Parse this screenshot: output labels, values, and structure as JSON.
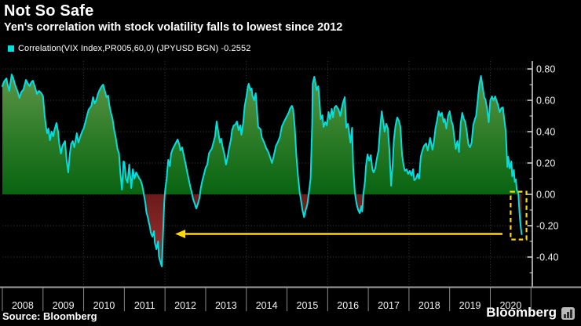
{
  "header": {
    "title": "Not So Safe",
    "subtitle": "Yen's correlation with stock volatility falls to lowest since 2012"
  },
  "legend": {
    "label": "Correlation(VIX Index,PR005,60,0) (JPYUSD BGN) -0.2552"
  },
  "footer": {
    "source": "Source: Bloomberg",
    "brand": "Bloomberg",
    "brand_icon": "bar-chart-icon"
  },
  "chart_data": {
    "type": "area",
    "title": "Not So Safe",
    "subtitle": "Yen's correlation with stock volatility falls to lowest since 2012",
    "series_name": "Correlation(VIX Index,PR005,60,0) (JPYUSD BGN)",
    "last_value": -0.2552,
    "x_axis": {
      "tick_labels": [
        "2008",
        "2009",
        "2010",
        "2011",
        "2012",
        "2013",
        "2014",
        "2015",
        "2016",
        "2017",
        "2018",
        "2019",
        "2020"
      ],
      "range": [
        2008,
        2021
      ]
    },
    "y_axis": {
      "major_ticks": [
        0.8,
        0.6,
        0.4,
        0.2,
        0.0,
        -0.2,
        -0.4
      ],
      "tick_labels": [
        "0.80",
        "0.60",
        "0.40",
        "0.20",
        "0.00",
        "-0.20",
        "-0.40"
      ],
      "minor_ticks": [
        0.7,
        0.5,
        0.3,
        0.1,
        -0.1,
        -0.3,
        -0.5
      ],
      "range": [
        -0.59,
        0.85
      ],
      "grid": "dotted"
    },
    "grid_v_years": [
      2010,
      2012,
      2014,
      2016,
      2018,
      2020
    ],
    "annotations": {
      "arrow": {
        "y_value": -0.2525,
        "from_year": 2020.3,
        "to_year": 2012.25,
        "color": "#ffd900",
        "meaning": "points from 2020 low back to 2012 level"
      },
      "highlight_box": {
        "from_year": 2020.5,
        "to_year": 2020.89,
        "value_top": 0.017,
        "value_bottom": -0.288,
        "color": "#ffd900",
        "style": "dashed"
      }
    },
    "colors": {
      "background": "#000000",
      "line": "#00dfe0",
      "area_positive_top": "#68994f",
      "area_positive_mid": "#2f7d28",
      "area_positive_bottom": "#086311",
      "area_negative_top": "#6b1a1a",
      "area_negative_bottom": "#a23434",
      "grid": "#454545",
      "axis": "#d9d9d9",
      "bottom_axis": "#9e9e9e",
      "tick_label": "#f2f2f2",
      "annotation": "#ffd900"
    },
    "points": [
      [
        2008.0,
        0.69
      ],
      [
        2008.04,
        0.72
      ],
      [
        2008.1,
        0.74
      ],
      [
        2008.13,
        0.7
      ],
      [
        2008.17,
        0.66
      ],
      [
        2008.23,
        0.765
      ],
      [
        2008.27,
        0.74
      ],
      [
        2008.31,
        0.7
      ],
      [
        2008.37,
        0.66
      ],
      [
        2008.42,
        0.615
      ],
      [
        2008.46,
        0.65
      ],
      [
        2008.52,
        0.67
      ],
      [
        2008.58,
        0.73
      ],
      [
        2008.62,
        0.71
      ],
      [
        2008.67,
        0.69
      ],
      [
        2008.71,
        0.715
      ],
      [
        2008.75,
        0.725
      ],
      [
        2008.81,
        0.68
      ],
      [
        2008.85,
        0.64
      ],
      [
        2008.9,
        0.66
      ],
      [
        2008.96,
        0.645
      ],
      [
        2009.0,
        0.625
      ],
      [
        2009.04,
        0.5
      ],
      [
        2009.08,
        0.42
      ],
      [
        2009.1,
        0.39
      ],
      [
        2009.13,
        0.42
      ],
      [
        2009.17,
        0.345
      ],
      [
        2009.21,
        0.4
      ],
      [
        2009.25,
        0.37
      ],
      [
        2009.29,
        0.42
      ],
      [
        2009.33,
        0.455
      ],
      [
        2009.37,
        0.4
      ],
      [
        2009.4,
        0.32
      ],
      [
        2009.44,
        0.26
      ],
      [
        2009.48,
        0.31
      ],
      [
        2009.54,
        0.34
      ],
      [
        2009.58,
        0.22
      ],
      [
        2009.62,
        0.14
      ],
      [
        2009.65,
        0.24
      ],
      [
        2009.69,
        0.32
      ],
      [
        2009.73,
        0.34
      ],
      [
        2009.77,
        0.3
      ],
      [
        2009.83,
        0.39
      ],
      [
        2009.87,
        0.33
      ],
      [
        2009.92,
        0.37
      ],
      [
        2009.96,
        0.4
      ],
      [
        2010.0,
        0.42
      ],
      [
        2010.04,
        0.46
      ],
      [
        2010.08,
        0.5
      ],
      [
        2010.12,
        0.54
      ],
      [
        2010.15,
        0.55
      ],
      [
        2010.19,
        0.565
      ],
      [
        2010.23,
        0.62
      ],
      [
        2010.27,
        0.58
      ],
      [
        2010.31,
        0.6
      ],
      [
        2010.35,
        0.64
      ],
      [
        2010.38,
        0.66
      ],
      [
        2010.42,
        0.68
      ],
      [
        2010.46,
        0.695
      ],
      [
        2010.48,
        0.7
      ],
      [
        2010.52,
        0.66
      ],
      [
        2010.56,
        0.62
      ],
      [
        2010.6,
        0.63
      ],
      [
        2010.63,
        0.57
      ],
      [
        2010.67,
        0.52
      ],
      [
        2010.71,
        0.48
      ],
      [
        2010.75,
        0.41
      ],
      [
        2010.79,
        0.36
      ],
      [
        2010.83,
        0.29
      ],
      [
        2010.87,
        0.26
      ],
      [
        2010.9,
        0.14
      ],
      [
        2010.94,
        0.03
      ],
      [
        2010.98,
        0.21
      ],
      [
        2011.0,
        0.205
      ],
      [
        2011.04,
        0.1
      ],
      [
        2011.08,
        0.075
      ],
      [
        2011.12,
        0.19
      ],
      [
        2011.15,
        0.1
      ],
      [
        2011.17,
        0.04
      ],
      [
        2011.21,
        0.16
      ],
      [
        2011.25,
        0.1
      ],
      [
        2011.29,
        0.14
      ],
      [
        2011.33,
        0.12
      ],
      [
        2011.37,
        0.1
      ],
      [
        2011.4,
        0.09
      ],
      [
        2011.44,
        0.055
      ],
      [
        2011.48,
        0.0
      ],
      [
        2011.52,
        -0.06
      ],
      [
        2011.54,
        -0.11
      ],
      [
        2011.58,
        -0.15
      ],
      [
        2011.6,
        -0.175
      ],
      [
        2011.63,
        -0.21
      ],
      [
        2011.65,
        -0.245
      ],
      [
        2011.69,
        -0.27
      ],
      [
        2011.73,
        -0.235
      ],
      [
        2011.75,
        -0.31
      ],
      [
        2011.79,
        -0.35
      ],
      [
        2011.83,
        -0.3
      ],
      [
        2011.85,
        -0.395
      ],
      [
        2011.88,
        -0.425
      ],
      [
        2011.92,
        -0.46
      ],
      [
        2011.94,
        -0.325
      ],
      [
        2011.98,
        -0.06
      ],
      [
        2012.0,
        0.02
      ],
      [
        2012.04,
        0.1
      ],
      [
        2012.08,
        0.22
      ],
      [
        2012.12,
        0.18
      ],
      [
        2012.15,
        0.26
      ],
      [
        2012.19,
        0.29
      ],
      [
        2012.23,
        0.31
      ],
      [
        2012.27,
        0.33
      ],
      [
        2012.31,
        0.35
      ],
      [
        2012.35,
        0.32
      ],
      [
        2012.38,
        0.28
      ],
      [
        2012.42,
        0.3
      ],
      [
        2012.46,
        0.25
      ],
      [
        2012.5,
        0.2
      ],
      [
        2012.54,
        0.15
      ],
      [
        2012.58,
        0.1
      ],
      [
        2012.62,
        0.05
      ],
      [
        2012.65,
        0.02
      ],
      [
        2012.69,
        -0.03
      ],
      [
        2012.73,
        -0.06
      ],
      [
        2012.77,
        -0.09
      ],
      [
        2012.81,
        -0.06
      ],
      [
        2012.85,
        -0.02
      ],
      [
        2012.88,
        0.04
      ],
      [
        2012.92,
        0.09
      ],
      [
        2012.96,
        0.13
      ],
      [
        2013.0,
        0.17
      ],
      [
        2013.04,
        0.19
      ],
      [
        2013.08,
        0.26
      ],
      [
        2013.12,
        0.28
      ],
      [
        2013.15,
        0.29
      ],
      [
        2013.19,
        0.33
      ],
      [
        2013.23,
        0.37
      ],
      [
        2013.27,
        0.465
      ],
      [
        2013.31,
        0.4
      ],
      [
        2013.35,
        0.33
      ],
      [
        2013.38,
        0.355
      ],
      [
        2013.42,
        0.3
      ],
      [
        2013.46,
        0.255
      ],
      [
        2013.5,
        0.19
      ],
      [
        2013.54,
        0.24
      ],
      [
        2013.58,
        0.3
      ],
      [
        2013.62,
        0.35
      ],
      [
        2013.65,
        0.41
      ],
      [
        2013.69,
        0.44
      ],
      [
        2013.73,
        0.445
      ],
      [
        2013.77,
        0.465
      ],
      [
        2013.81,
        0.41
      ],
      [
        2013.85,
        0.44
      ],
      [
        2013.88,
        0.38
      ],
      [
        2013.92,
        0.45
      ],
      [
        2013.96,
        0.565
      ],
      [
        2014.0,
        0.62
      ],
      [
        2014.04,
        0.69
      ],
      [
        2014.06,
        0.705
      ],
      [
        2014.1,
        0.665
      ],
      [
        2014.13,
        0.675
      ],
      [
        2014.15,
        0.63
      ],
      [
        2014.19,
        0.6
      ],
      [
        2014.23,
        0.645
      ],
      [
        2014.29,
        0.43
      ],
      [
        2014.35,
        0.415
      ],
      [
        2014.38,
        0.365
      ],
      [
        2014.44,
        0.33
      ],
      [
        2014.48,
        0.3
      ],
      [
        2014.54,
        0.27
      ],
      [
        2014.58,
        0.24
      ],
      [
        2014.63,
        0.2
      ],
      [
        2014.67,
        0.24
      ],
      [
        2014.73,
        0.31
      ],
      [
        2014.77,
        0.33
      ],
      [
        2014.83,
        0.37
      ],
      [
        2014.87,
        0.43
      ],
      [
        2014.92,
        0.46
      ],
      [
        2014.96,
        0.48
      ],
      [
        2015.0,
        0.5
      ],
      [
        2015.04,
        0.52
      ],
      [
        2015.08,
        0.55
      ],
      [
        2015.12,
        0.565
      ],
      [
        2015.15,
        0.545
      ],
      [
        2015.19,
        0.43
      ],
      [
        2015.23,
        0.25
      ],
      [
        2015.27,
        0.12
      ],
      [
        2015.31,
        0.015
      ],
      [
        2015.35,
        -0.05
      ],
      [
        2015.38,
        -0.1
      ],
      [
        2015.42,
        -0.145
      ],
      [
        2015.46,
        -0.1
      ],
      [
        2015.5,
        -0.065
      ],
      [
        2015.54,
        0.015
      ],
      [
        2015.58,
        0.1
      ],
      [
        2015.62,
        0.45
      ],
      [
        2015.63,
        0.705
      ],
      [
        2015.67,
        0.75
      ],
      [
        2015.69,
        0.725
      ],
      [
        2015.73,
        0.665
      ],
      [
        2015.77,
        0.69
      ],
      [
        2015.79,
        0.63
      ],
      [
        2015.83,
        0.48
      ],
      [
        2015.87,
        0.505
      ],
      [
        2015.9,
        0.43
      ],
      [
        2015.94,
        0.46
      ],
      [
        2015.98,
        0.44
      ],
      [
        2016.02,
        0.525
      ],
      [
        2016.06,
        0.48
      ],
      [
        2016.1,
        0.545
      ],
      [
        2016.13,
        0.49
      ],
      [
        2016.17,
        0.555
      ],
      [
        2016.21,
        0.565
      ],
      [
        2016.27,
        0.54
      ],
      [
        2016.31,
        0.5
      ],
      [
        2016.37,
        0.58
      ],
      [
        2016.42,
        0.62
      ],
      [
        2016.46,
        0.425
      ],
      [
        2016.5,
        0.45
      ],
      [
        2016.56,
        0.33
      ],
      [
        2016.6,
        0.425
      ],
      [
        2016.63,
        0.17
      ],
      [
        2016.67,
        0.01
      ],
      [
        2016.71,
        -0.06
      ],
      [
        2016.75,
        -0.1
      ],
      [
        2016.79,
        -0.12
      ],
      [
        2016.83,
        -0.075
      ],
      [
        2016.85,
        -0.11
      ],
      [
        2016.88,
        0.005
      ],
      [
        2016.92,
        0.09
      ],
      [
        2016.94,
        0.175
      ],
      [
        2016.98,
        0.255
      ],
      [
        2017.02,
        0.215
      ],
      [
        2017.06,
        0.25
      ],
      [
        2017.1,
        0.16
      ],
      [
        2017.13,
        0.14
      ],
      [
        2017.17,
        0.165
      ],
      [
        2017.21,
        0.23
      ],
      [
        2017.25,
        0.28
      ],
      [
        2017.29,
        0.42
      ],
      [
        2017.33,
        0.53
      ],
      [
        2017.37,
        0.46
      ],
      [
        2017.4,
        0.4
      ],
      [
        2017.44,
        0.45
      ],
      [
        2017.48,
        0.42
      ],
      [
        2017.52,
        0.28
      ],
      [
        2017.56,
        0.055
      ],
      [
        2017.6,
        0.2
      ],
      [
        2017.63,
        0.35
      ],
      [
        2017.67,
        0.44
      ],
      [
        2017.71,
        0.49
      ],
      [
        2017.75,
        0.47
      ],
      [
        2017.79,
        0.43
      ],
      [
        2017.83,
        0.25
      ],
      [
        2017.87,
        0.18
      ],
      [
        2017.9,
        0.15
      ],
      [
        2017.94,
        0.16
      ],
      [
        2017.98,
        0.13
      ],
      [
        2018.02,
        0.15
      ],
      [
        2018.06,
        0.12
      ],
      [
        2018.1,
        0.16
      ],
      [
        2018.13,
        0.09
      ],
      [
        2018.17,
        0.1
      ],
      [
        2018.21,
        0.13
      ],
      [
        2018.25,
        0.1
      ],
      [
        2018.29,
        0.24
      ],
      [
        2018.33,
        0.28
      ],
      [
        2018.37,
        0.31
      ],
      [
        2018.42,
        0.325
      ],
      [
        2018.46,
        0.28
      ],
      [
        2018.52,
        0.36
      ],
      [
        2018.58,
        0.285
      ],
      [
        2018.62,
        0.35
      ],
      [
        2018.65,
        0.42
      ],
      [
        2018.69,
        0.47
      ],
      [
        2018.73,
        0.53
      ],
      [
        2018.77,
        0.5
      ],
      [
        2018.81,
        0.52
      ],
      [
        2018.85,
        0.46
      ],
      [
        2018.88,
        0.48
      ],
      [
        2018.92,
        0.42
      ],
      [
        2018.96,
        0.5
      ],
      [
        2019.0,
        0.53
      ],
      [
        2019.04,
        0.47
      ],
      [
        2019.08,
        0.44
      ],
      [
        2019.12,
        0.35
      ],
      [
        2019.15,
        0.29
      ],
      [
        2019.19,
        0.34
      ],
      [
        2019.23,
        0.27
      ],
      [
        2019.27,
        0.45
      ],
      [
        2019.31,
        0.52
      ],
      [
        2019.35,
        0.48
      ],
      [
        2019.38,
        0.465
      ],
      [
        2019.42,
        0.405
      ],
      [
        2019.46,
        0.32
      ],
      [
        2019.5,
        0.3
      ],
      [
        2019.54,
        0.33
      ],
      [
        2019.58,
        0.44
      ],
      [
        2019.62,
        0.48
      ],
      [
        2019.65,
        0.5
      ],
      [
        2019.69,
        0.6
      ],
      [
        2019.73,
        0.7
      ],
      [
        2019.77,
        0.755
      ],
      [
        2019.81,
        0.69
      ],
      [
        2019.85,
        0.62
      ],
      [
        2019.88,
        0.605
      ],
      [
        2019.92,
        0.55
      ],
      [
        2019.96,
        0.46
      ],
      [
        2020.0,
        0.6
      ],
      [
        2020.04,
        0.625
      ],
      [
        2020.08,
        0.6
      ],
      [
        2020.12,
        0.625
      ],
      [
        2020.15,
        0.6
      ],
      [
        2020.19,
        0.57
      ],
      [
        2020.23,
        0.525
      ],
      [
        2020.27,
        0.55
      ],
      [
        2020.31,
        0.555
      ],
      [
        2020.35,
        0.465
      ],
      [
        2020.38,
        0.4
      ],
      [
        2020.42,
        0.175
      ],
      [
        2020.44,
        0.24
      ],
      [
        2020.48,
        0.165
      ],
      [
        2020.52,
        0.21
      ],
      [
        2020.54,
        0.115
      ],
      [
        2020.58,
        0.155
      ],
      [
        2020.6,
        0.08
      ],
      [
        2020.63,
        0.095
      ],
      [
        2020.65,
        0.03
      ],
      [
        2020.69,
        0.005
      ],
      [
        2020.71,
        -0.09
      ],
      [
        2020.73,
        -0.16
      ],
      [
        2020.75,
        -0.21
      ],
      [
        2020.77,
        -0.2552
      ]
    ]
  }
}
